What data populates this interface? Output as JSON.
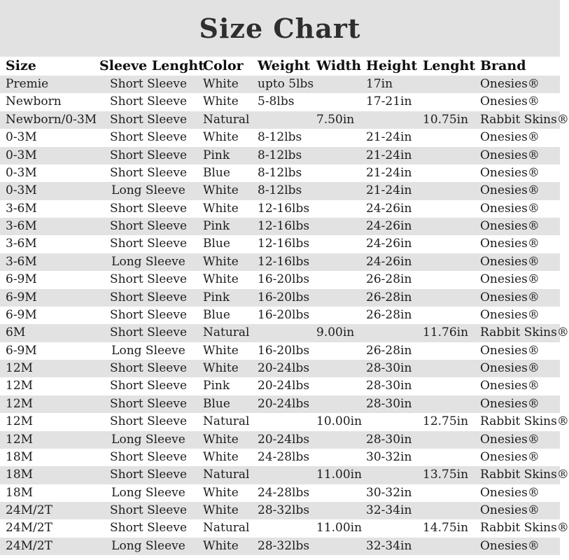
{
  "chart_data": {
    "type": "table",
    "title": "Size Chart",
    "columns": [
      "Size",
      "Sleeve Lenght",
      "Color",
      "Weight",
      "Width",
      "Height",
      "Lenght",
      "Brand"
    ],
    "rows": [
      [
        "Premie",
        "Short Sleeve",
        "White",
        "upto 5lbs",
        "",
        "17in",
        "",
        "Onesies®"
      ],
      [
        "Newborn",
        "Short Sleeve",
        "White",
        "5-8lbs",
        "",
        "17-21in",
        "",
        "Onesies®"
      ],
      [
        "Newborn/0-3M",
        "Short Sleeve",
        "Natural",
        "",
        "7.50in",
        "",
        "10.75in",
        "Rabbit Skins®"
      ],
      [
        "0-3M",
        "Short Sleeve",
        "White",
        "8-12lbs",
        "",
        "21-24in",
        "",
        "Onesies®"
      ],
      [
        "0-3M",
        "Short Sleeve",
        "Pink",
        "8-12lbs",
        "",
        "21-24in",
        "",
        "Onesies®"
      ],
      [
        "0-3M",
        "Short Sleeve",
        "Blue",
        "8-12lbs",
        "",
        "21-24in",
        "",
        "Onesies®"
      ],
      [
        "0-3M",
        "Long Sleeve",
        "White",
        "8-12lbs",
        "",
        "21-24in",
        "",
        "Onesies®"
      ],
      [
        "3-6M",
        "Short Sleeve",
        "White",
        "12-16lbs",
        "",
        "24-26in",
        "",
        "Onesies®"
      ],
      [
        "3-6M",
        "Short Sleeve",
        "Pink",
        "12-16lbs",
        "",
        "24-26in",
        "",
        "Onesies®"
      ],
      [
        "3-6M",
        "Short Sleeve",
        "Blue",
        "12-16lbs",
        "",
        "24-26in",
        "",
        "Onesies®"
      ],
      [
        "3-6M",
        "Long Sleeve",
        "White",
        "12-16lbs",
        "",
        "24-26in",
        "",
        "Onesies®"
      ],
      [
        "6-9M",
        "Short Sleeve",
        "White",
        "16-20lbs",
        "",
        "26-28in",
        "",
        "Onesies®"
      ],
      [
        "6-9M",
        "Short Sleeve",
        "Pink",
        "16-20lbs",
        "",
        "26-28in",
        "",
        "Onesies®"
      ],
      [
        "6-9M",
        "Short Sleeve",
        "Blue",
        "16-20lbs",
        "",
        "26-28in",
        "",
        "Onesies®"
      ],
      [
        "6M",
        "Short Sleeve",
        "Natural",
        "",
        "9.00in",
        "",
        "11.76in",
        "Rabbit Skins®"
      ],
      [
        "6-9M",
        "Long Sleeve",
        "White",
        "16-20lbs",
        "",
        "26-28in",
        "",
        "Onesies®"
      ],
      [
        "12M",
        "Short Sleeve",
        "White",
        "20-24lbs",
        "",
        "28-30in",
        "",
        "Onesies®"
      ],
      [
        "12M",
        "Short Sleeve",
        "Pink",
        "20-24lbs",
        "",
        "28-30in",
        "",
        "Onesies®"
      ],
      [
        "12M",
        "Short Sleeve",
        "Blue",
        "20-24lbs",
        "",
        "28-30in",
        "",
        "Onesies®"
      ],
      [
        "12M",
        "Short Sleeve",
        "Natural",
        "",
        "10.00in",
        "",
        "12.75in",
        "Rabbit Skins®"
      ],
      [
        "12M",
        "Long Sleeve",
        "White",
        "20-24lbs",
        "",
        "28-30in",
        "",
        "Onesies®"
      ],
      [
        "18M",
        "Short Sleeve",
        "White",
        "24-28lbs",
        "",
        "30-32in",
        "",
        "Onesies®"
      ],
      [
        "18M",
        "Short Sleeve",
        "Natural",
        "",
        "11.00in",
        "",
        "13.75in",
        "Rabbit Skins®"
      ],
      [
        "18M",
        "Long Sleeve",
        "White",
        "24-28lbs",
        "",
        "30-32in",
        "",
        "Onesies®"
      ],
      [
        "24M/2T",
        "Short Sleeve",
        "White",
        "28-32lbs",
        "",
        "32-34in",
        "",
        "Onesies®"
      ],
      [
        "24M/2T",
        "Short Sleeve",
        "Natural",
        "",
        "11.00in",
        "",
        "14.75in",
        "Rabbit Skins®"
      ],
      [
        "24M/2T",
        "Long Sleeve",
        "White",
        "28-32lbs",
        "",
        "32-34in",
        "",
        "Onesies®"
      ]
    ]
  },
  "colors": {
    "stripe": "#e2e2e2",
    "background": "#ffffff",
    "text": "#1c1c1c",
    "title_text": "#2e2e2e"
  }
}
